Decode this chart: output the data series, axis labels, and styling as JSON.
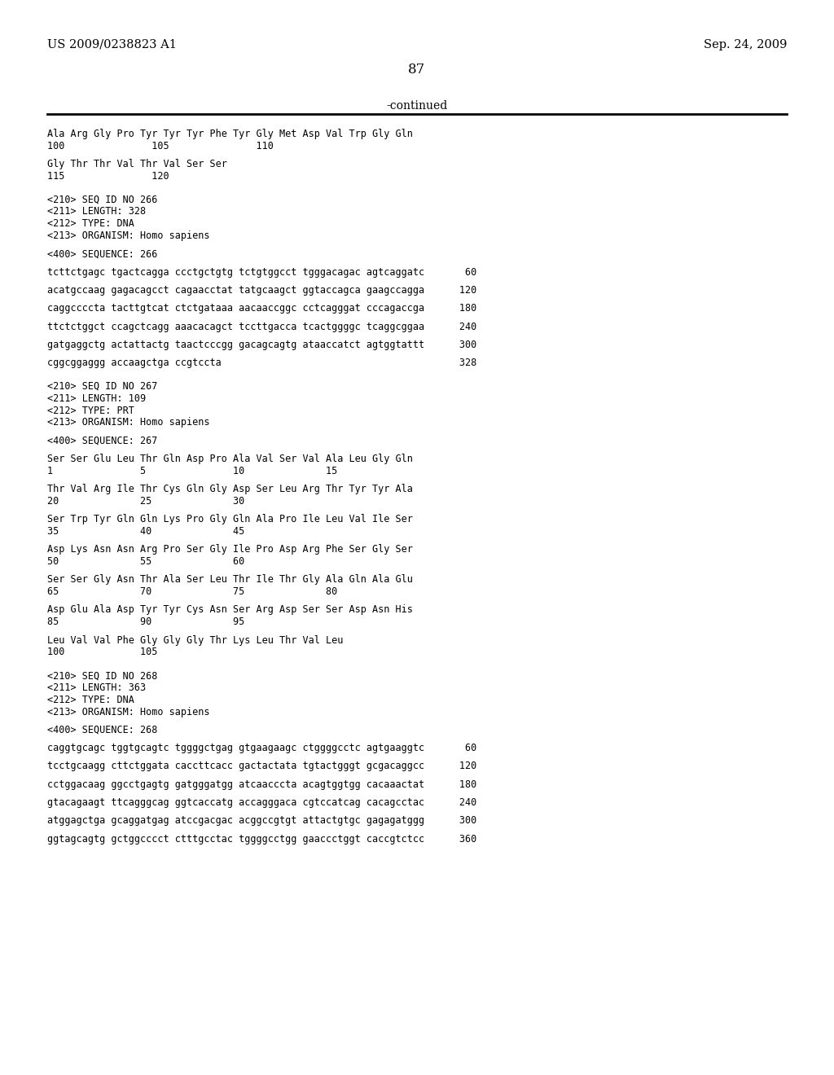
{
  "patent_number": "US 2009/0238823 A1",
  "date": "Sep. 24, 2009",
  "page_number": "87",
  "continued_label": "-continued",
  "background_color": "#ffffff",
  "text_color": "#000000",
  "body_lines": [
    "Ala Arg Gly Pro Tyr Tyr Tyr Phe Tyr Gly Met Asp Val Trp Gly Gln",
    "100               105               110",
    "",
    "Gly Thr Thr Val Thr Val Ser Ser",
    "115               120",
    "",
    "",
    "<210> SEQ ID NO 266",
    "<211> LENGTH: 328",
    "<212> TYPE: DNA",
    "<213> ORGANISM: Homo sapiens",
    "",
    "<400> SEQUENCE: 266",
    "",
    "tcttctgagc tgactcagga ccctgctgtg tctgtggcct tgggacagac agtcaggatc       60",
    "",
    "acatgccaag gagacagcct cagaacctat tatgcaagct ggtaccagca gaagccagga      120",
    "",
    "caggccccta tacttgtcat ctctgataaa aacaaccggc cctcagggat cccagaccga      180",
    "",
    "ttctctggct ccagctcagg aaacacagct tccttgacca tcactggggc tcaggcggaa      240",
    "",
    "gatgaggctg actattactg taactcccgg gacagcagtg ataaccatct agtggtattt      300",
    "",
    "cggcggaggg accaagctga ccgtccta                                         328",
    "",
    "",
    "<210> SEQ ID NO 267",
    "<211> LENGTH: 109",
    "<212> TYPE: PRT",
    "<213> ORGANISM: Homo sapiens",
    "",
    "<400> SEQUENCE: 267",
    "",
    "Ser Ser Glu Leu Thr Gln Asp Pro Ala Val Ser Val Ala Leu Gly Gln",
    "1               5               10              15",
    "",
    "Thr Val Arg Ile Thr Cys Gln Gly Asp Ser Leu Arg Thr Tyr Tyr Ala",
    "20              25              30",
    "",
    "Ser Trp Tyr Gln Gln Lys Pro Gly Gln Ala Pro Ile Leu Val Ile Ser",
    "35              40              45",
    "",
    "Asp Lys Asn Asn Arg Pro Ser Gly Ile Pro Asp Arg Phe Ser Gly Ser",
    "50              55              60",
    "",
    "Ser Ser Gly Asn Thr Ala Ser Leu Thr Ile Thr Gly Ala Gln Ala Glu",
    "65              70              75              80",
    "",
    "Asp Glu Ala Asp Tyr Tyr Cys Asn Ser Arg Asp Ser Ser Asp Asn His",
    "85              90              95",
    "",
    "Leu Val Val Phe Gly Gly Gly Thr Lys Leu Thr Val Leu",
    "100             105",
    "",
    "",
    "<210> SEQ ID NO 268",
    "<211> LENGTH: 363",
    "<212> TYPE: DNA",
    "<213> ORGANISM: Homo sapiens",
    "",
    "<400> SEQUENCE: 268",
    "",
    "caggtgcagc tggtgcagtc tggggctgag gtgaagaagc ctggggcctc agtgaaggtc       60",
    "",
    "tcctgcaagg cttctggata caccttcacc gactactata tgtactgggt gcgacaggcc      120",
    "",
    "cctggacaag ggcctgagtg gatgggatgg atcaacccta acagtggtgg cacaaactat      180",
    "",
    "gtacagaagt ttcagggcag ggtcaccatg accagggaca cgtccatcag cacagcctac      240",
    "",
    "atggagctga gcaggatgag atccgacgac acggccgtgt attactgtgc gagagatggg      300",
    "",
    "ggtagcagtg gctggcccct ctttgcctac tggggcctgg gaaccctggt caccgtctcc      360"
  ]
}
